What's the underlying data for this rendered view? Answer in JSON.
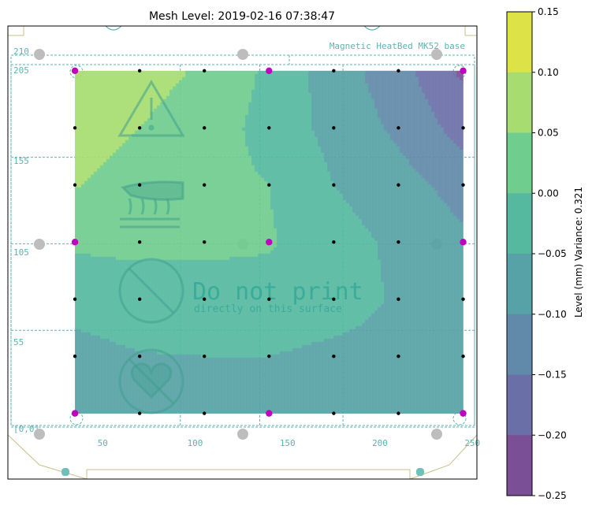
{
  "chart_data": {
    "type": "heatmap",
    "title": "Mesh Level: 2019-02-16 07:38:47",
    "colorbar": {
      "label": "Level (mm) Variance: 0.321",
      "ticks": [
        "0.15",
        "0.10",
        "0.05",
        "0.00",
        "−0.05",
        "−0.10",
        "−0.15",
        "−0.20",
        "−0.25"
      ],
      "levels": [
        0.15,
        0.1,
        0.05,
        0.0,
        -0.05,
        -0.1,
        -0.15,
        -0.2,
        -0.25
      ],
      "colors": [
        "#dde346",
        "#a7dd70",
        "#6fcd8e",
        "#55b9a0",
        "#56a2a6",
        "#6189aa",
        "#6b6fa8",
        "#7a4f96"
      ]
    },
    "bed": {
      "name": "Magnetic HeatBed MK52 base",
      "x_ticks": [
        "50",
        "100",
        "150",
        "200",
        "250"
      ],
      "x_tick_values": [
        50,
        100,
        150,
        200,
        250
      ],
      "y_ticks": [
        "210",
        "205",
        "155",
        "105",
        "55",
        "[0,0]"
      ],
      "y_tick_values": [
        210,
        205,
        155,
        105,
        55,
        0
      ],
      "warning_text": "Do not print",
      "warning_subtext": "directly on this surface"
    },
    "mesh": {
      "x": [
        35,
        70,
        105,
        140,
        175,
        210,
        245
      ],
      "y": [
        205,
        172,
        139,
        106,
        73,
        40,
        7
      ],
      "z": [
        [
          0.07,
          0.065,
          0.045,
          -0.01,
          -0.075,
          -0.13,
          -0.21
        ],
        [
          0.065,
          0.05,
          0.03,
          -0.02,
          -0.065,
          -0.11,
          -0.17
        ],
        [
          0.052,
          0.035,
          0.018,
          0.0,
          -0.05,
          -0.08,
          -0.12
        ],
        [
          0.01,
          0.015,
          0.01,
          0.005,
          -0.03,
          -0.06,
          -0.09
        ],
        [
          -0.04,
          -0.03,
          -0.02,
          -0.02,
          -0.03,
          -0.055,
          -0.07
        ],
        [
          -0.06,
          -0.052,
          -0.05,
          -0.05,
          -0.06,
          -0.065,
          -0.07
        ],
        [
          -0.07,
          -0.07,
          -0.07,
          -0.07,
          -0.07,
          -0.08,
          -0.08
        ]
      ],
      "probe_points_magenta": [
        [
          35,
          205
        ],
        [
          140,
          205
        ],
        [
          245,
          205
        ],
        [
          35,
          106
        ],
        [
          140,
          106
        ],
        [
          245,
          106
        ],
        [
          35,
          7
        ],
        [
          140,
          7
        ],
        [
          245,
          7
        ]
      ]
    }
  }
}
